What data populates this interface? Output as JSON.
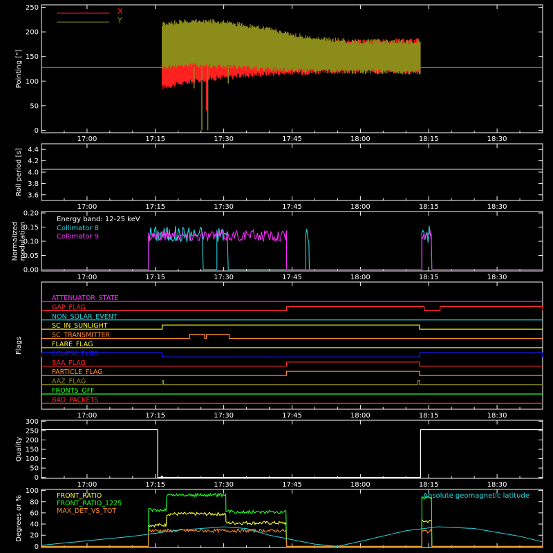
{
  "time_axis": {
    "tick_labels": [
      "17:00",
      "17:15",
      "17:30",
      "17:45",
      "18:00",
      "18:15",
      "18:30"
    ],
    "tick_minutes": [
      1020,
      1035,
      1050,
      1065,
      1080,
      1095,
      1110
    ],
    "range_minutes": [
      1010,
      1120
    ]
  },
  "colors": {
    "background": "#000000",
    "axes": "#ffffff",
    "x": "#ff2020",
    "y": "#8c8c1a",
    "cyan": "#29d7e0",
    "magenta": "#ff2bff",
    "blue": "#1a1aff",
    "orange": "#ff8c2a",
    "yellow": "#ffff22",
    "green": "#22ff22",
    "red": "#ff2a2a",
    "white": "#ffffff"
  },
  "chart_data": [
    {
      "id": "pointing",
      "type": "area",
      "ylabel": "Pointing [\"]",
      "ylim": [
        -5,
        255
      ],
      "yticks": [
        0,
        50,
        100,
        150,
        200,
        250
      ],
      "legend": [
        {
          "name": "X",
          "color": "#ff2020"
        },
        {
          "name": "Y",
          "color": "#8c8c1a"
        }
      ],
      "reference_line": 128,
      "series": [
        {
          "name": "X",
          "color": "#ff2020",
          "x": [
            1036.5,
            1040,
            1045,
            1050,
            1055,
            1060,
            1065,
            1070,
            1075,
            1080,
            1085,
            1090,
            1093.2
          ],
          "lower": [
            85,
            92,
            100,
            106,
            110,
            113,
            115,
            116,
            117,
            118,
            118,
            118,
            118
          ],
          "upper": [
            155,
            165,
            170,
            175,
            178,
            180,
            182,
            184,
            185,
            186,
            187,
            187,
            187
          ]
        },
        {
          "name": "Y",
          "color": "#8c8c1a",
          "x": [
            1036.5,
            1040,
            1045,
            1050,
            1055,
            1060,
            1065,
            1070,
            1075,
            1080,
            1085,
            1090,
            1093.2
          ],
          "lower": [
            125,
            130,
            130,
            128,
            125,
            122,
            120,
            119,
            118,
            117,
            117,
            116,
            116
          ],
          "upper": [
            220,
            225,
            228,
            225,
            218,
            210,
            200,
            192,
            188,
            185,
            185,
            184,
            184
          ]
        }
      ],
      "spikes": [
        {
          "x": 1045.2,
          "y": 0,
          "color": "#8c8c1a"
        },
        {
          "x": 1046.2,
          "y": 40,
          "color": "#ff2020"
        },
        {
          "x": 1046.5,
          "y": 0,
          "color": "#8c8c1a"
        },
        {
          "x": 1043.5,
          "y": 85,
          "color": "#8c8c1a"
        },
        {
          "x": 1051.0,
          "y": 95,
          "color": "#8c8c1a"
        }
      ]
    },
    {
      "id": "roll-period",
      "type": "line",
      "ylabel": "Roll period [s]",
      "ylim": [
        3.5,
        4.5
      ],
      "yticks": [
        3.6,
        3.8,
        4.0,
        4.2,
        4.4
      ],
      "ytick_labels": [
        "3.6",
        "3.8",
        "4.0",
        "4.2",
        "4.4"
      ],
      "series": [
        {
          "name": "",
          "color": "#ffffff",
          "x": [
            1010,
            1120
          ],
          "y": [
            4.05,
            4.05
          ]
        }
      ]
    },
    {
      "id": "modulation",
      "type": "line",
      "ylabel": "Normalized modulation",
      "ylabel_lines": [
        "Normalized",
        "modulation"
      ],
      "ylim": [
        -0.005,
        0.205
      ],
      "yticks": [
        0.0,
        0.05,
        0.1,
        0.15,
        0.2
      ],
      "ytick_labels": [
        "0.00",
        "0.05",
        "0.10",
        "0.15",
        "0.20"
      ],
      "annotation": "Energy band: 12-25 keV",
      "legend": [
        {
          "name": "Collimator 8",
          "color": "#29d7e0"
        },
        {
          "name": "Collimator 9",
          "color": "#ff2bff"
        }
      ],
      "series": [
        {
          "name": "Collimator 8",
          "color": "#29d7e0",
          "segments": [
            [
              1033.5,
              1045.5
            ],
            [
              1048.5,
              1051.0
            ],
            [
              1068.0,
              1068.8
            ],
            [
              1093.5,
              1095.7
            ]
          ],
          "mean": 0.125,
          "amplitude": 0.03
        },
        {
          "name": "Collimator 9",
          "color": "#ff2bff",
          "segments": [
            [
              1033.5,
              1063.8
            ],
            [
              1093.5,
              1095.7
            ]
          ],
          "mean": 0.12,
          "amplitude": 0.02
        }
      ]
    },
    {
      "id": "flags",
      "type": "line",
      "ylabel": "Flags",
      "series": [
        {
          "name": "ATTENUATOR_STATE",
          "color": "#ff2bff",
          "levels": [],
          "high": []
        },
        {
          "name": "GAP_FLAG",
          "color": "#ff2a2a",
          "high": [
            [
              1063.8,
              1094.0
            ],
            [
              1097.5,
              1120
            ]
          ]
        },
        {
          "name": "NON_SOLAR_EVENT",
          "color": "#29d7e0",
          "high": []
        },
        {
          "name": "SC_IN_SUNLIGHT",
          "color": "#ffff22",
          "high": [
            [
              1036.5,
              1093.0
            ]
          ]
        },
        {
          "name": "SC_TRANSMITTER",
          "color": "#ff8c2a",
          "high": [
            [
              1042.5,
              1045.8
            ],
            [
              1046.2,
              1051.2
            ]
          ]
        },
        {
          "name": "FLARE_FLAG",
          "color": "#ffff22",
          "high": []
        },
        {
          "name": "ECLIPSE_FLAG",
          "color": "#1a1aff",
          "high": [
            [
              1010,
              1036.5
            ],
            [
              1093.0,
              1120
            ]
          ]
        },
        {
          "name": "SAA_FLAG",
          "color": "#ff2a2a",
          "high": [
            [
              1063.8,
              1093.0
            ]
          ]
        },
        {
          "name": "PARTICLE_FLAG",
          "color": "#ff8c2a",
          "high": [
            [
              1063.8,
              1093.0
            ]
          ]
        },
        {
          "name": "AAZ_FLAG",
          "color": "#8c8c1a",
          "high": [
            [
              1036.5,
              1036.8
            ],
            [
              1092.6,
              1093.0
            ]
          ]
        },
        {
          "name": "FRONTS_OFF",
          "color": "#22ff22",
          "high": []
        },
        {
          "name": "BAD_PACKETS",
          "color": "#ff2a2a",
          "high": []
        }
      ]
    },
    {
      "id": "quality",
      "type": "line",
      "ylabel": "Quality",
      "ylim": [
        -5,
        305
      ],
      "yticks": [
        0,
        50,
        100,
        150,
        200,
        250,
        300
      ],
      "series": [
        {
          "name": "",
          "color": "#ffffff",
          "x": [
            1010,
            1035.5,
            1035.5,
            1093.2,
            1093.2,
            1120
          ],
          "y": [
            255,
            255,
            0,
            0,
            255,
            255
          ]
        }
      ]
    },
    {
      "id": "ratios",
      "type": "line",
      "ylabel": "Degrees or %",
      "ylim": [
        -2,
        102
      ],
      "yticks": [
        0,
        20,
        40,
        60,
        80,
        100
      ],
      "annotation": "Absolute geomagnetic latitude",
      "legend": [
        {
          "name": "FRONT_RATIO",
          "color": "#ffff22"
        },
        {
          "name": "FRONT_RATIO_1225",
          "color": "#22ff22"
        },
        {
          "name": "MAX_DET_VS_TOT",
          "color": "#ff8c2a"
        }
      ],
      "series": [
        {
          "name": "FRONT_RATIO",
          "color": "#ffff22",
          "steps": [
            [
              1033.5,
              1037.5,
              38
            ],
            [
              1037.5,
              1050.5,
              58
            ],
            [
              1050.5,
              1063.8,
              42
            ],
            [
              1093.5,
              1095.7,
              45
            ]
          ]
        },
        {
          "name": "FRONT_RATIO_1225",
          "color": "#22ff22",
          "steps": [
            [
              1033.5,
              1037.5,
              65
            ],
            [
              1037.5,
              1050.5,
              92
            ],
            [
              1050.5,
              1063.8,
              62
            ],
            [
              1093.5,
              1095.7,
              88
            ]
          ]
        },
        {
          "name": "MAX_DET_VS_TOT",
          "color": "#ff8c2a",
          "steps": [
            [
              1033.5,
              1063.8,
              28
            ],
            [
              1093.5,
              1095.7,
              27
            ]
          ]
        },
        {
          "name": "Absolute geomagnetic latitude",
          "color": "#29d7e0",
          "x": [
            1010,
            1020,
            1030,
            1040,
            1050,
            1055,
            1060,
            1070,
            1075,
            1080,
            1090,
            1097,
            1105,
            1115,
            1120
          ],
          "y": [
            2,
            10,
            18,
            29,
            35,
            32,
            20,
            4,
            0,
            9,
            28,
            35,
            32,
            18,
            8
          ]
        }
      ]
    }
  ]
}
